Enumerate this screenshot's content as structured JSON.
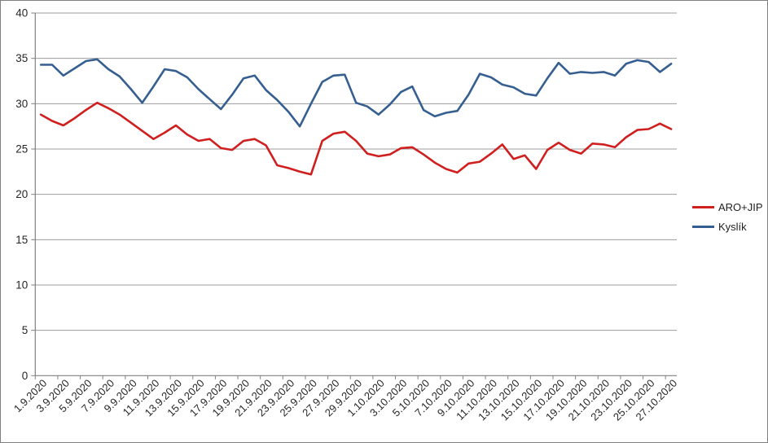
{
  "chart": {
    "background_color": "#FFFFFF",
    "frame_border_color": "#7F7F7F",
    "gridline_color": "#9C9C9C",
    "axis_color": "#808080",
    "label_color": "#262626"
  },
  "legend": {
    "items": [
      {
        "label": "ARO+JIP",
        "color": "#D01F1F"
      },
      {
        "label": "Kyslík",
        "color": "#365F91"
      }
    ]
  },
  "chart_data": {
    "type": "line",
    "title": "",
    "xlabel": "",
    "ylabel": "",
    "ylim": [
      0,
      40
    ],
    "ytick_step": 5,
    "grid": "horizontal",
    "legend_position": "right",
    "x_label_every_n": 2,
    "x": [
      "1.9.2020",
      "2.9.2020",
      "3.9.2020",
      "4.9.2020",
      "5.9.2020",
      "6.9.2020",
      "7.9.2020",
      "8.9.2020",
      "9.9.2020",
      "10.9.2020",
      "11.9.2020",
      "12.9.2020",
      "13.9.2020",
      "14.9.2020",
      "15.9.2020",
      "16.9.2020",
      "17.9.2020",
      "18.9.2020",
      "19.9.2020",
      "20.9.2020",
      "21.9.2020",
      "22.9.2020",
      "23.9.2020",
      "24.9.2020",
      "25.9.2020",
      "26.9.2020",
      "27.9.2020",
      "28.9.2020",
      "29.9.2020",
      "30.9.2020",
      "1.10.2020",
      "2.10.2020",
      "3.10.2020",
      "4.10.2020",
      "5.10.2020",
      "6.10.2020",
      "7.10.2020",
      "8.10.2020",
      "9.10.2020",
      "10.10.2020",
      "11.10.2020",
      "12.10.2020",
      "13.10.2020",
      "14.10.2020",
      "15.10.2020",
      "16.10.2020",
      "17.10.2020",
      "18.10.2020",
      "19.10.2020",
      "20.10.2020",
      "21.10.2020",
      "22.10.2020",
      "23.10.2020",
      "24.10.2020",
      "25.10.2020",
      "26.10.2020",
      "27.10.2020"
    ],
    "series": [
      {
        "name": "ARO+JIP",
        "color": "#D01F1F",
        "values": [
          28.8,
          28.1,
          27.6,
          28.4,
          29.3,
          30.1,
          29.5,
          28.8,
          27.9,
          27.0,
          26.1,
          26.8,
          27.6,
          26.6,
          25.9,
          26.1,
          25.1,
          24.9,
          25.9,
          26.1,
          25.4,
          23.2,
          22.9,
          22.5,
          22.2,
          25.9,
          26.7,
          26.9,
          25.9,
          24.5,
          24.2,
          24.4,
          25.1,
          25.2,
          24.4,
          23.5,
          22.8,
          22.4,
          23.4,
          23.6,
          24.5,
          25.5,
          23.9,
          24.3,
          22.8,
          24.9,
          25.7,
          24.9,
          24.5,
          25.6,
          25.5,
          25.2,
          26.3,
          27.1,
          27.2,
          27.8,
          27.2
        ]
      },
      {
        "name": "Kyslík",
        "color": "#365F91",
        "values": [
          34.3,
          34.3,
          33.1,
          33.9,
          34.7,
          34.9,
          33.8,
          33.0,
          31.6,
          30.1,
          31.9,
          33.8,
          33.6,
          32.9,
          31.6,
          30.5,
          29.4,
          31.0,
          32.8,
          33.1,
          31.5,
          30.4,
          29.1,
          27.5,
          30.0,
          32.4,
          33.1,
          33.2,
          30.1,
          29.7,
          28.8,
          29.9,
          31.3,
          31.9,
          29.3,
          28.6,
          29.0,
          29.2,
          31.0,
          33.3,
          32.9,
          32.1,
          31.8,
          31.1,
          30.9,
          32.8,
          34.5,
          33.3,
          33.5,
          33.4,
          33.5,
          33.1,
          34.4,
          34.8,
          34.6,
          33.5,
          34.4
        ]
      }
    ]
  }
}
